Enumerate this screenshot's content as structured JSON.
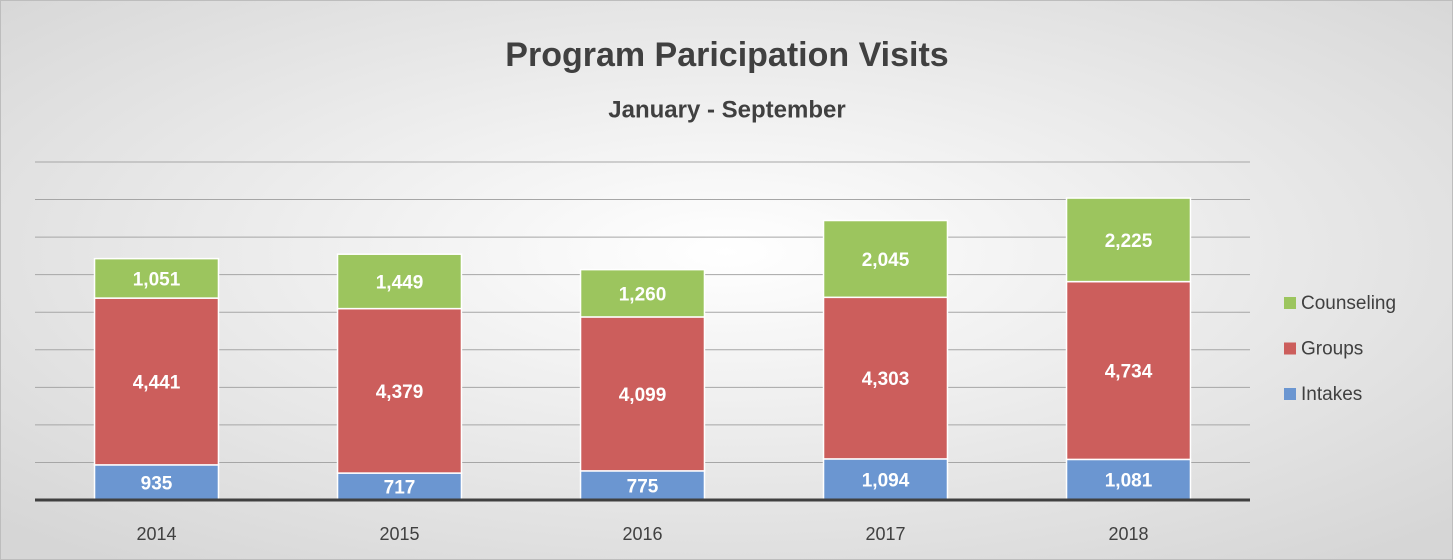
{
  "chart_data": {
    "type": "stacked_bar",
    "title": "Program Paricipation Visits",
    "subtitle": "January - September",
    "categories": [
      "2014",
      "2015",
      "2016",
      "2017",
      "2018"
    ],
    "series": [
      {
        "name": "Intakes",
        "color": "#6b96d1",
        "values": [
          935,
          717,
          775,
          1094,
          1081
        ],
        "value_labels": [
          "935",
          "717",
          "775",
          "1,094",
          "1,081"
        ]
      },
      {
        "name": "Groups",
        "color": "#cc5e5c",
        "values": [
          4441,
          4379,
          4099,
          4303,
          4734
        ],
        "value_labels": [
          "4,441",
          "4,379",
          "4,099",
          "4,303",
          "4,734"
        ]
      },
      {
        "name": "Counseling",
        "color": "#9cc55e",
        "values": [
          1051,
          1449,
          1260,
          2045,
          2225
        ],
        "value_labels": [
          "1,051",
          "1,449",
          "1,260",
          "2,045",
          "2,225"
        ]
      }
    ],
    "ylim": [
      0,
      9000
    ],
    "yticks": [
      0,
      1000,
      2000,
      3000,
      4000,
      5000,
      6000,
      7000,
      8000,
      9000
    ],
    "grid": true,
    "legend": "right"
  }
}
